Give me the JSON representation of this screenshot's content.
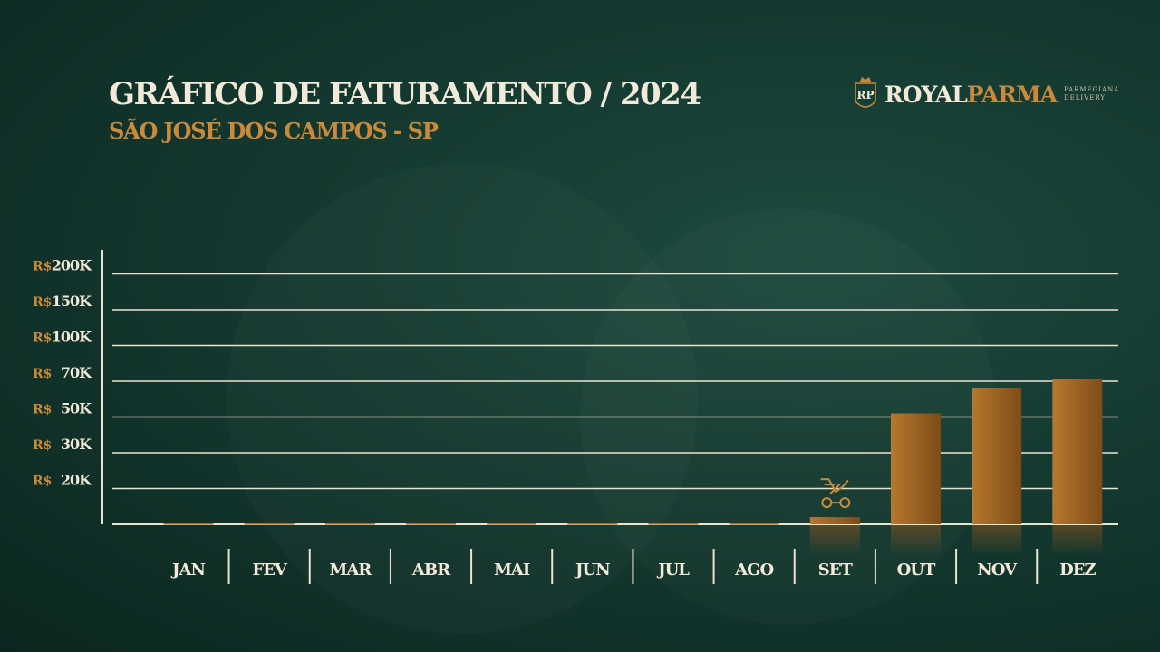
{
  "header": {
    "title": "GRÁFICO DE FATURAMENTO / 2024",
    "subtitle": "SÃO JOSÉ DOS CAMPOS - SP"
  },
  "logo": {
    "monogram": "RP",
    "brand_part1": "ROYAL",
    "brand_part2": "PARMA",
    "tagline_line1": "PARMEGIANA",
    "tagline_line2": "DELIVERY"
  },
  "colors": {
    "background": "#163d33",
    "title": "#f1ead8",
    "accent": "#c98a3c",
    "bar_light": "#b7782f",
    "bar_dark": "#7e4c18",
    "gridline": "#e9e4d0"
  },
  "chart_data": {
    "type": "bar",
    "title": "GRÁFICO DE FATURAMENTO / 2024",
    "subtitle": "SÃO JOSÉ DOS CAMPOS - SP",
    "categories": [
      "JAN",
      "FEV",
      "MAR",
      "ABR",
      "MAI",
      "JUN",
      "JUL",
      "AGO",
      "SET",
      "OUT",
      "NOV",
      "DEZ"
    ],
    "values": [
      0,
      0,
      0,
      0,
      0,
      0,
      0,
      0,
      4000,
      52000,
      66000,
      72000
    ],
    "y_ticks": [
      {
        "prefix": "R$",
        "label": "20K",
        "value": 20000
      },
      {
        "prefix": "R$",
        "label": "30K",
        "value": 30000
      },
      {
        "prefix": "R$",
        "label": "50K",
        "value": 50000
      },
      {
        "prefix": "R$",
        "label": "70K",
        "value": 70000
      },
      {
        "prefix": "R$",
        "label": "100K",
        "value": 100000
      },
      {
        "prefix": "R$",
        "label": "150K",
        "value": 150000
      },
      {
        "prefix": "R$",
        "label": "200K",
        "value": 200000
      }
    ],
    "y_scale": "non-uniform (ticks evenly spaced)",
    "grid": true,
    "annotation_icon": "scooter-icon",
    "annotation_category": "SET"
  }
}
